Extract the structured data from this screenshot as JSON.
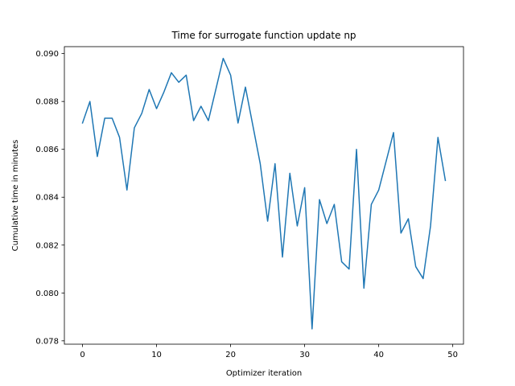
{
  "chart_data": {
    "type": "line",
    "title": "Time for surrogate function update np",
    "xlabel": "Optimizer iteration",
    "ylabel": "Cumulative time in minutes",
    "xlim": [
      -2.45,
      51.45
    ],
    "ylim": [
      0.07786,
      0.09029
    ],
    "xticks": [
      0,
      10,
      20,
      30,
      40,
      50
    ],
    "yticks": [
      0.078,
      0.08,
      0.082,
      0.084,
      0.086,
      0.088,
      0.09
    ],
    "ytick_labels": [
      "0.078",
      "0.080",
      "0.082",
      "0.084",
      "0.086",
      "0.088",
      "0.090"
    ],
    "grid": false,
    "series": [
      {
        "color": "#1f77b4",
        "x": [
          0,
          1,
          2,
          3,
          4,
          5,
          6,
          7,
          8,
          9,
          10,
          11,
          12,
          13,
          14,
          15,
          16,
          17,
          18,
          19,
          20,
          21,
          22,
          23,
          24,
          25,
          26,
          27,
          28,
          29,
          30,
          31,
          32,
          33,
          34,
          35,
          36,
          37,
          38,
          39,
          40,
          41,
          42,
          43,
          44,
          45,
          46,
          47,
          48,
          49
        ],
        "values": [
          0.0871,
          0.088,
          0.0857,
          0.0873,
          0.0873,
          0.0865,
          0.0843,
          0.0869,
          0.0875,
          0.0885,
          0.0877,
          0.0884,
          0.0892,
          0.0888,
          0.0891,
          0.0872,
          0.0878,
          0.0872,
          0.0885,
          0.0898,
          0.0891,
          0.0871,
          0.0886,
          0.087,
          0.0854,
          0.083,
          0.0854,
          0.0815,
          0.085,
          0.0828,
          0.0844,
          0.0785,
          0.0839,
          0.0829,
          0.0837,
          0.0813,
          0.081,
          0.086,
          0.0802,
          0.0837,
          0.0843,
          0.0855,
          0.0867,
          0.0825,
          0.0831,
          0.0811,
          0.0806,
          0.0828,
          0.0865,
          0.0847
        ]
      }
    ]
  }
}
